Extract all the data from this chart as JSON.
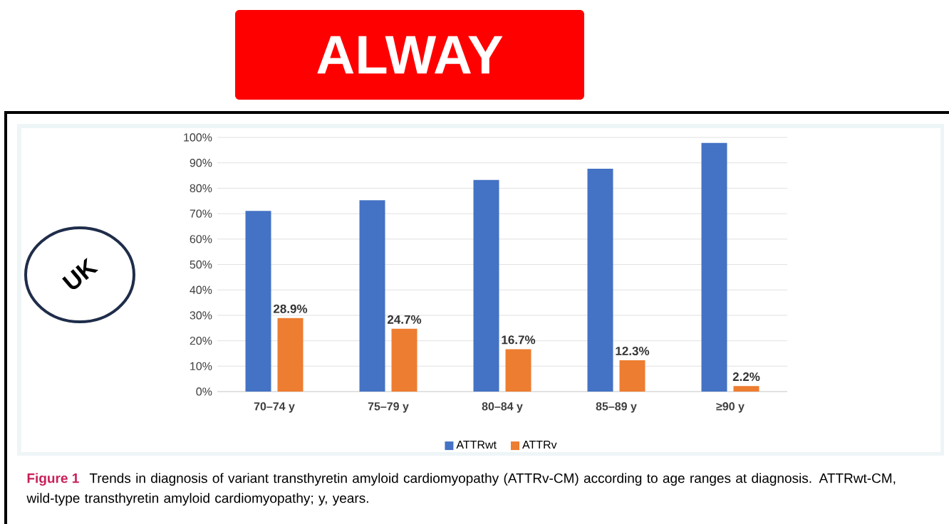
{
  "chart_data": {
    "type": "bar",
    "categories": [
      "70–74 y",
      "75–79 y",
      "80–84 y",
      "85–89 y",
      "≥90 y"
    ],
    "series": [
      {
        "name": "ATTRwt",
        "color": "#4472c4",
        "values": [
          71.1,
          75.3,
          83.3,
          87.7,
          97.8
        ]
      },
      {
        "name": "ATTRv",
        "color": "#ed7d31",
        "values": [
          28.9,
          24.7,
          16.7,
          12.3,
          2.2
        ],
        "value_labels": [
          "28.9%",
          "24.7%",
          "16.7%",
          "12.3%",
          "2.2%"
        ]
      }
    ],
    "ylim": [
      0,
      100
    ],
    "yticks": [
      {
        "value": 0,
        "label": "0%"
      },
      {
        "value": 10,
        "label": "10%"
      },
      {
        "value": 20,
        "label": "20%"
      },
      {
        "value": 30,
        "label": "30%"
      },
      {
        "value": 40,
        "label": "40%"
      },
      {
        "value": 50,
        "label": "50%"
      },
      {
        "value": 60,
        "label": "60%"
      },
      {
        "value": 70,
        "label": "70%"
      },
      {
        "value": 80,
        "label": "80%"
      },
      {
        "value": 90,
        "label": "90%"
      },
      {
        "value": 100,
        "label": "100%"
      }
    ],
    "grid": "y",
    "legend": "bottom",
    "annotations": [
      "Figure 1",
      "Trends in diagnosis of variant transthyretin amyloid cardiomyopathy (ATTRv-CM) according to age ranges at diagnosis. ATTRwt-CM, wild-type transthyretin amyloid cardiomyopathy; y, years.",
      "UK",
      "ALWAY"
    ]
  }
}
